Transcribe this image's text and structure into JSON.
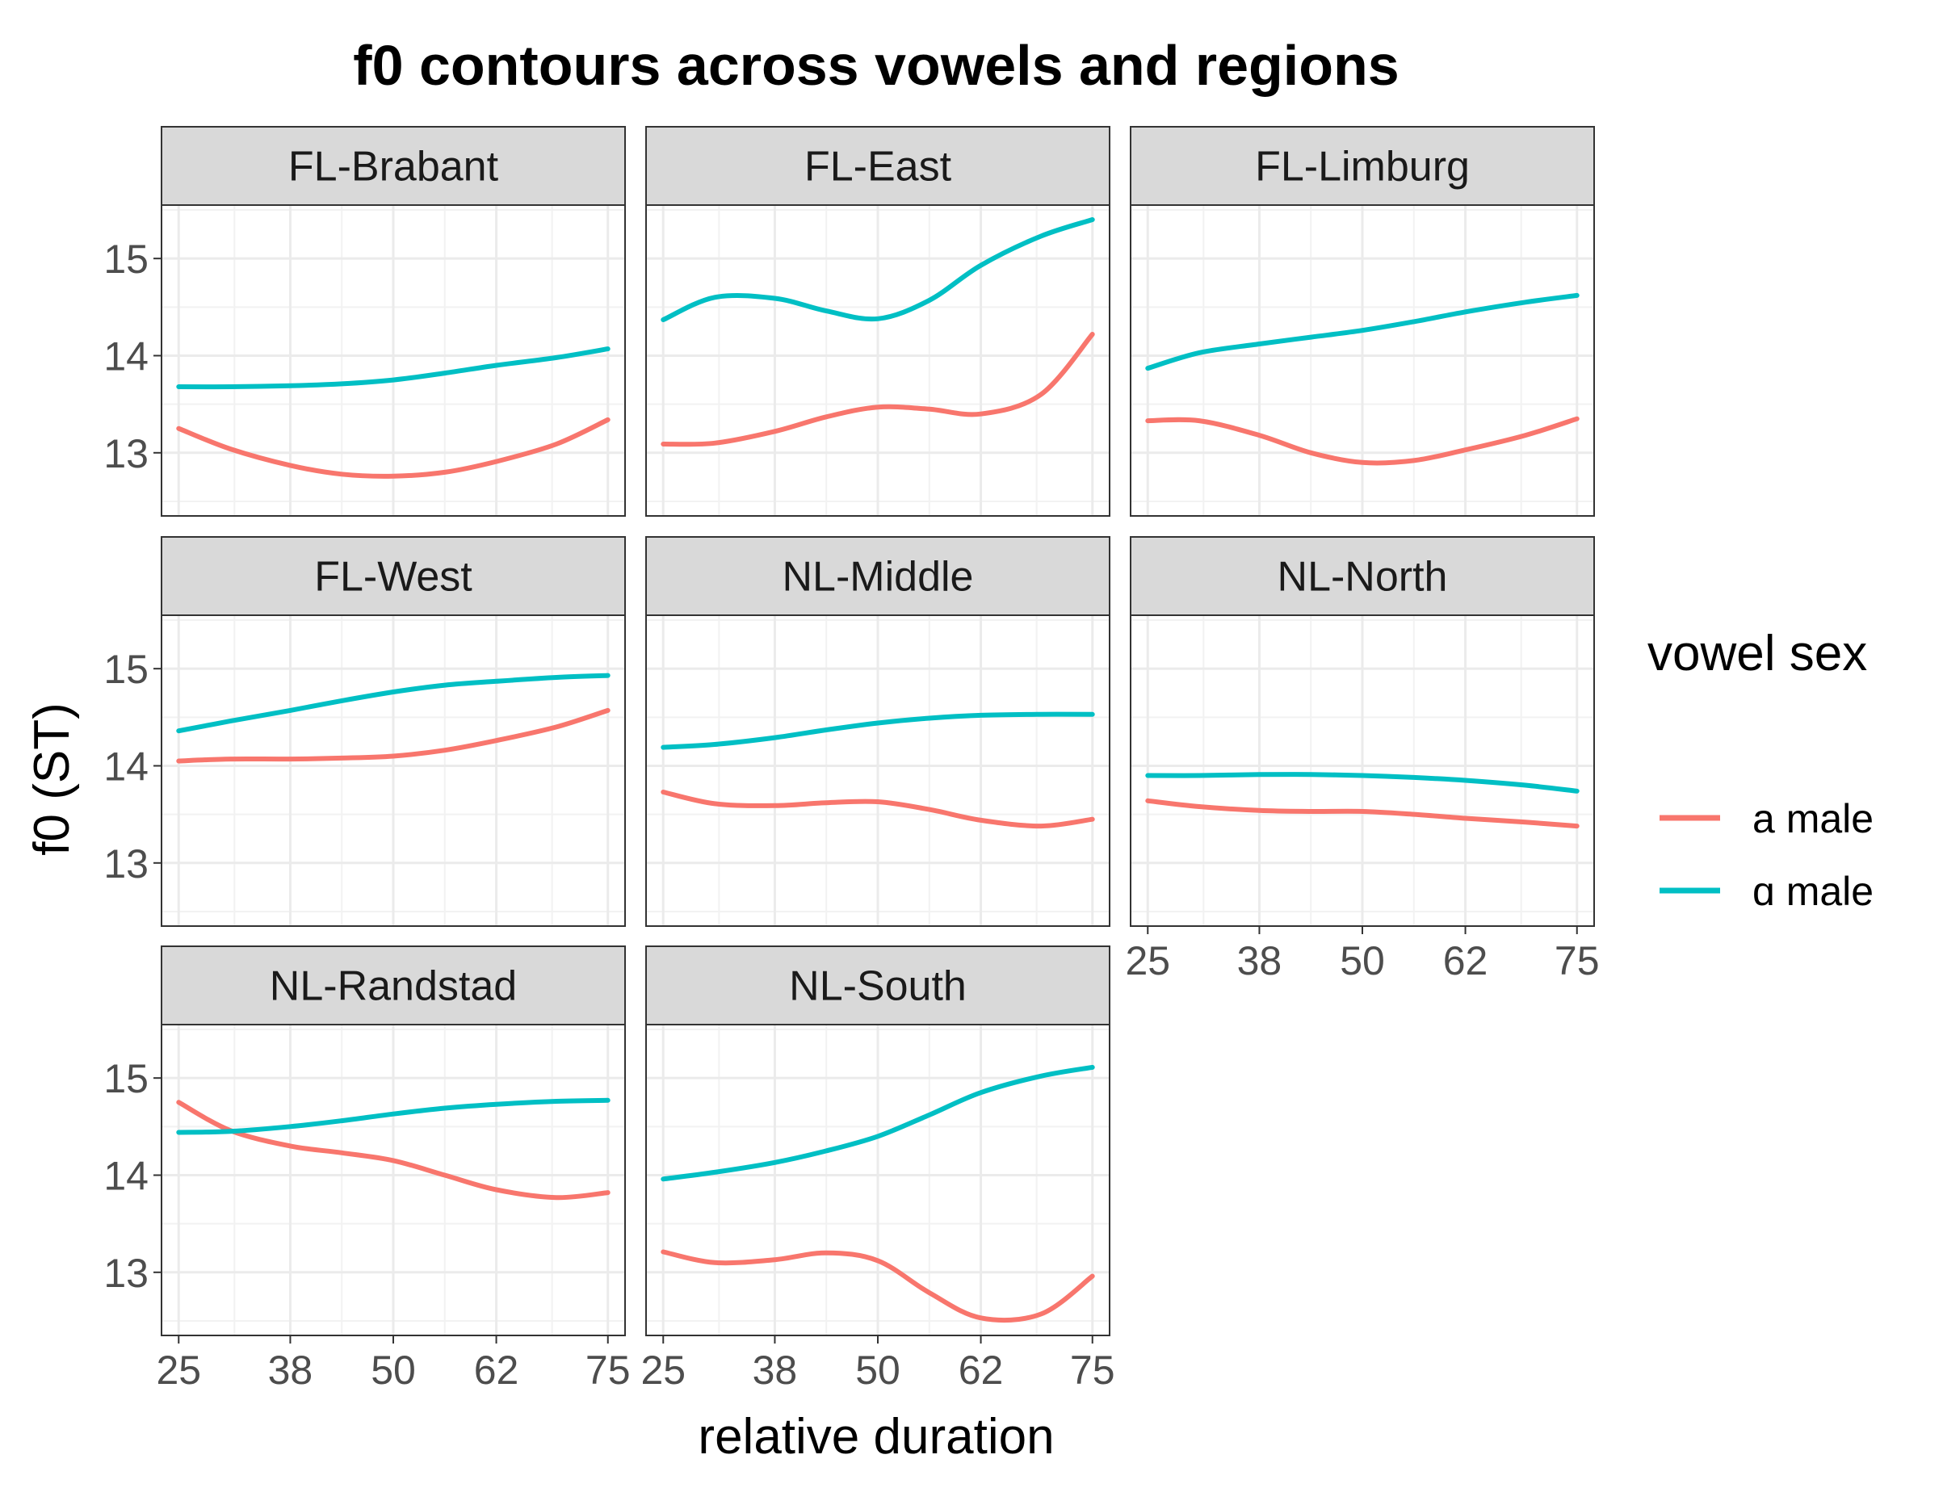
{
  "chart_data": {
    "type": "line",
    "title": "f0 contours across vowels and regions",
    "xlabel": "relative duration",
    "ylabel": "f0 (ST)",
    "x_ticks": [
      25,
      38,
      50,
      62,
      75
    ],
    "y_ticks": [
      13,
      14,
      15
    ],
    "xlim": [
      23,
      77
    ],
    "ylim": [
      12.35,
      15.55
    ],
    "grid": true,
    "legend": {
      "title": "vowel sex",
      "position": "right",
      "entries": [
        {
          "label": "a male",
          "color": "#F8766D"
        },
        {
          "label": "ɑ male",
          "color": "#00BFC4"
        }
      ]
    },
    "panels": [
      {
        "name": "FL-Brabant",
        "series": [
          {
            "name": "a male",
            "x": [
              25,
              31,
              38,
              44,
              50,
              56,
              62,
              69,
              75
            ],
            "y": [
              13.25,
              13.04,
              12.87,
              12.78,
              12.76,
              12.8,
              12.91,
              13.09,
              13.34
            ]
          },
          {
            "name": "ɑ male",
            "x": [
              25,
              31,
              38,
              44,
              50,
              56,
              62,
              69,
              75
            ],
            "y": [
              13.68,
              13.68,
              13.69,
              13.71,
              13.75,
              13.82,
              13.9,
              13.98,
              14.07
            ]
          }
        ]
      },
      {
        "name": "FL-East",
        "series": [
          {
            "name": "a male",
            "x": [
              25,
              31,
              38,
              44,
              50,
              56,
              62,
              69,
              75
            ],
            "y": [
              13.09,
              13.1,
              13.22,
              13.37,
              13.47,
              13.45,
              13.4,
              13.6,
              14.22
            ]
          },
          {
            "name": "ɑ male",
            "x": [
              25,
              31,
              38,
              44,
              50,
              56,
              62,
              69,
              75
            ],
            "y": [
              14.37,
              14.6,
              14.59,
              14.46,
              14.38,
              14.57,
              14.93,
              15.23,
              15.4
            ]
          }
        ]
      },
      {
        "name": "FL-Limburg",
        "series": [
          {
            "name": "a male",
            "x": [
              25,
              31,
              38,
              44,
              50,
              56,
              62,
              69,
              75
            ],
            "y": [
              13.33,
              13.33,
              13.18,
              13.0,
              12.9,
              12.92,
              13.03,
              13.18,
              13.35
            ]
          },
          {
            "name": "ɑ male",
            "x": [
              25,
              31,
              38,
              44,
              50,
              56,
              62,
              69,
              75
            ],
            "y": [
              13.87,
              14.03,
              14.12,
              14.19,
              14.26,
              14.35,
              14.45,
              14.55,
              14.62
            ]
          }
        ]
      },
      {
        "name": "FL-West",
        "series": [
          {
            "name": "a male",
            "x": [
              25,
              31,
              38,
              44,
              50,
              56,
              62,
              69,
              75
            ],
            "y": [
              14.05,
              14.07,
              14.07,
              14.08,
              14.1,
              14.16,
              14.26,
              14.4,
              14.57
            ]
          },
          {
            "name": "ɑ male",
            "x": [
              25,
              31,
              38,
              44,
              50,
              56,
              62,
              69,
              75
            ],
            "y": [
              14.36,
              14.46,
              14.57,
              14.67,
              14.76,
              14.83,
              14.87,
              14.91,
              14.93
            ]
          }
        ]
      },
      {
        "name": "NL-Middle",
        "series": [
          {
            "name": "a male",
            "x": [
              25,
              31,
              38,
              44,
              50,
              56,
              62,
              69,
              75
            ],
            "y": [
              13.73,
              13.61,
              13.59,
              13.62,
              13.63,
              13.55,
              13.44,
              13.38,
              13.45
            ]
          },
          {
            "name": "ɑ male",
            "x": [
              25,
              31,
              38,
              44,
              50,
              56,
              62,
              69,
              75
            ],
            "y": [
              14.19,
              14.22,
              14.29,
              14.37,
              14.44,
              14.49,
              14.52,
              14.53,
              14.53
            ]
          }
        ]
      },
      {
        "name": "NL-North",
        "series": [
          {
            "name": "a male",
            "x": [
              25,
              31,
              38,
              44,
              50,
              56,
              62,
              69,
              75
            ],
            "y": [
              13.64,
              13.58,
              13.54,
              13.53,
              13.53,
              13.5,
              13.46,
              13.42,
              13.38
            ]
          },
          {
            "name": "ɑ male",
            "x": [
              25,
              31,
              38,
              44,
              50,
              56,
              62,
              69,
              75
            ],
            "y": [
              13.9,
              13.9,
              13.91,
              13.91,
              13.9,
              13.88,
              13.85,
              13.8,
              13.74
            ]
          }
        ]
      },
      {
        "name": "NL-Randstad",
        "series": [
          {
            "name": "a male",
            "x": [
              25,
              31,
              38,
              44,
              50,
              56,
              62,
              69,
              75
            ],
            "y": [
              14.75,
              14.46,
              14.3,
              14.23,
              14.15,
              14.0,
              13.85,
              13.77,
              13.82
            ]
          },
          {
            "name": "ɑ male",
            "x": [
              25,
              31,
              38,
              44,
              50,
              56,
              62,
              69,
              75
            ],
            "y": [
              14.44,
              14.45,
              14.5,
              14.56,
              14.63,
              14.69,
              14.73,
              14.76,
              14.77
            ]
          }
        ]
      },
      {
        "name": "NL-South",
        "series": [
          {
            "name": "a male",
            "x": [
              25,
              31,
              38,
              44,
              50,
              56,
              62,
              69,
              75
            ],
            "y": [
              13.21,
              13.1,
              13.13,
              13.2,
              13.12,
              12.79,
              12.53,
              12.57,
              12.96
            ]
          },
          {
            "name": "ɑ male",
            "x": [
              25,
              31,
              38,
              44,
              50,
              56,
              62,
              69,
              75
            ],
            "y": [
              13.96,
              14.03,
              14.13,
              14.25,
              14.4,
              14.62,
              14.85,
              15.02,
              15.11
            ]
          }
        ]
      }
    ]
  }
}
